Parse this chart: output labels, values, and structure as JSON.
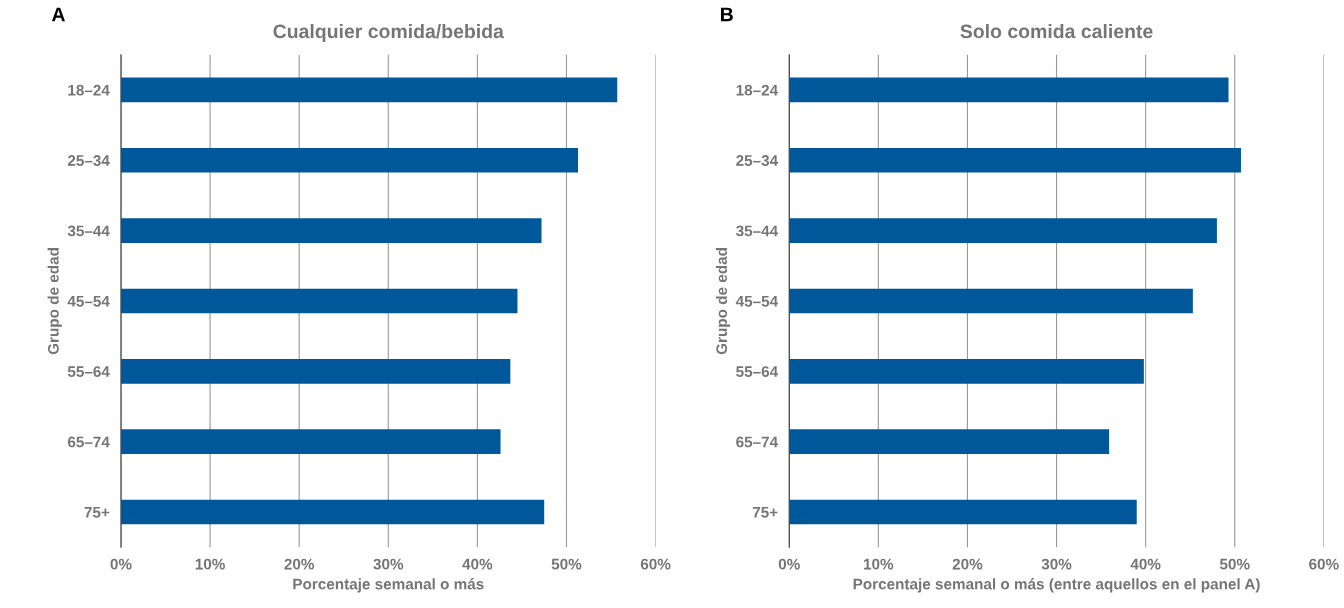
{
  "chart_data": [
    {
      "type": "bar",
      "orientation": "horizontal",
      "title": "Cualquier comida/bebida",
      "xlabel": "Porcentaje semanal o más",
      "ylabel": "Grupo de edad",
      "annotations": [
        "A"
      ],
      "categories": [
        "18–24",
        "25–34",
        "35–44",
        "45–54",
        "55–64",
        "65–74",
        "75+"
      ],
      "values": [
        55.7,
        51.3,
        47.2,
        44.5,
        43.7,
        42.6,
        47.5
      ],
      "color": "#00589a",
      "xlim": [
        0,
        60
      ],
      "xticks": [
        {
          "value": 0,
          "label": "0%"
        },
        {
          "value": 10,
          "label": "10%"
        },
        {
          "value": 20,
          "label": "20%"
        },
        {
          "value": 30,
          "label": "30%"
        },
        {
          "value": 40,
          "label": "40%"
        },
        {
          "value": 50,
          "label": "50%"
        },
        {
          "value": 60,
          "label": "60%"
        }
      ],
      "grid": "x"
    },
    {
      "type": "bar",
      "orientation": "horizontal",
      "title": "Solo comida caliente",
      "xlabel": "Porcentaje semanal o más (entre aquellos en el panel A)",
      "ylabel": "Grupo de edad",
      "annotations": [
        "B"
      ],
      "categories": [
        "18–24",
        "25–34",
        "35–44",
        "45–54",
        "55–64",
        "65–74",
        "75+"
      ],
      "values": [
        49.3,
        50.7,
        48.0,
        45.3,
        39.8,
        35.9,
        39.0
      ],
      "color": "#00589a",
      "xlim": [
        0,
        60
      ],
      "xticks": [
        {
          "value": 0,
          "label": "0%"
        },
        {
          "value": 10,
          "label": "10%"
        },
        {
          "value": 20,
          "label": "20%"
        },
        {
          "value": 30,
          "label": "30%"
        },
        {
          "value": 40,
          "label": "40%"
        },
        {
          "value": 50,
          "label": "50%"
        },
        {
          "value": 60,
          "label": "60%"
        }
      ],
      "grid": "x"
    }
  ]
}
